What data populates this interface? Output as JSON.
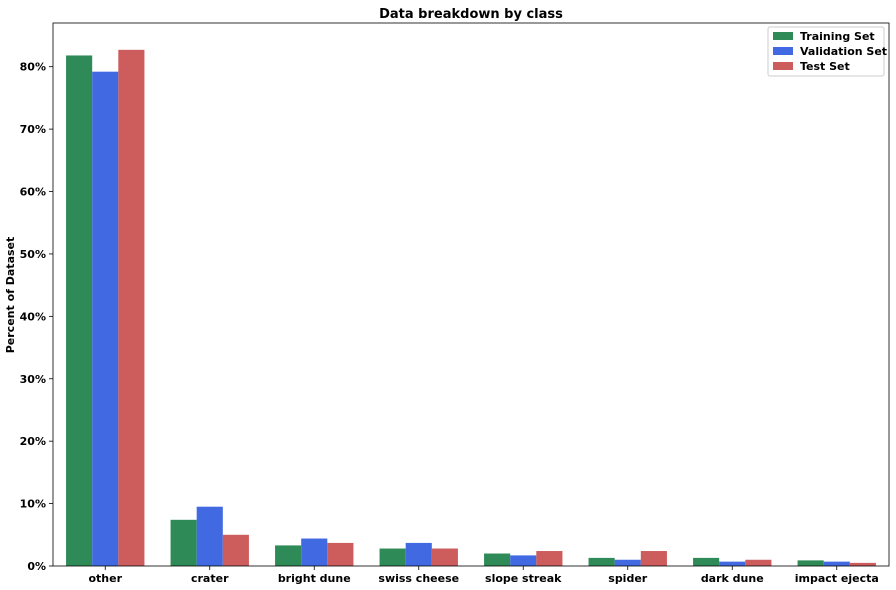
{
  "chart_data": {
    "type": "bar",
    "title": "Data breakdown by class",
    "xlabel": "",
    "ylabel": "Percent of Dataset",
    "ylim": [
      0,
      87
    ],
    "yticks": [
      0,
      10,
      20,
      30,
      40,
      50,
      60,
      70,
      80
    ],
    "ytick_suffix": "%",
    "grid": false,
    "legend_position": "top-right",
    "categories": [
      "other",
      "crater",
      "bright dune",
      "swiss cheese",
      "slope streak",
      "spider",
      "dark dune",
      "impact ejecta"
    ],
    "series": [
      {
        "name": "Training Set",
        "color": "#2e8b57",
        "values": [
          81.8,
          7.4,
          3.3,
          2.8,
          2.0,
          1.3,
          1.3,
          0.9
        ]
      },
      {
        "name": "Validation Set",
        "color": "#4169e1",
        "values": [
          79.2,
          9.5,
          4.4,
          3.7,
          1.7,
          1.0,
          0.7,
          0.7
        ]
      },
      {
        "name": "Test Set",
        "color": "#cd5c5c",
        "values": [
          82.7,
          5.0,
          3.7,
          2.8,
          2.4,
          2.4,
          1.0,
          0.5
        ]
      }
    ]
  }
}
